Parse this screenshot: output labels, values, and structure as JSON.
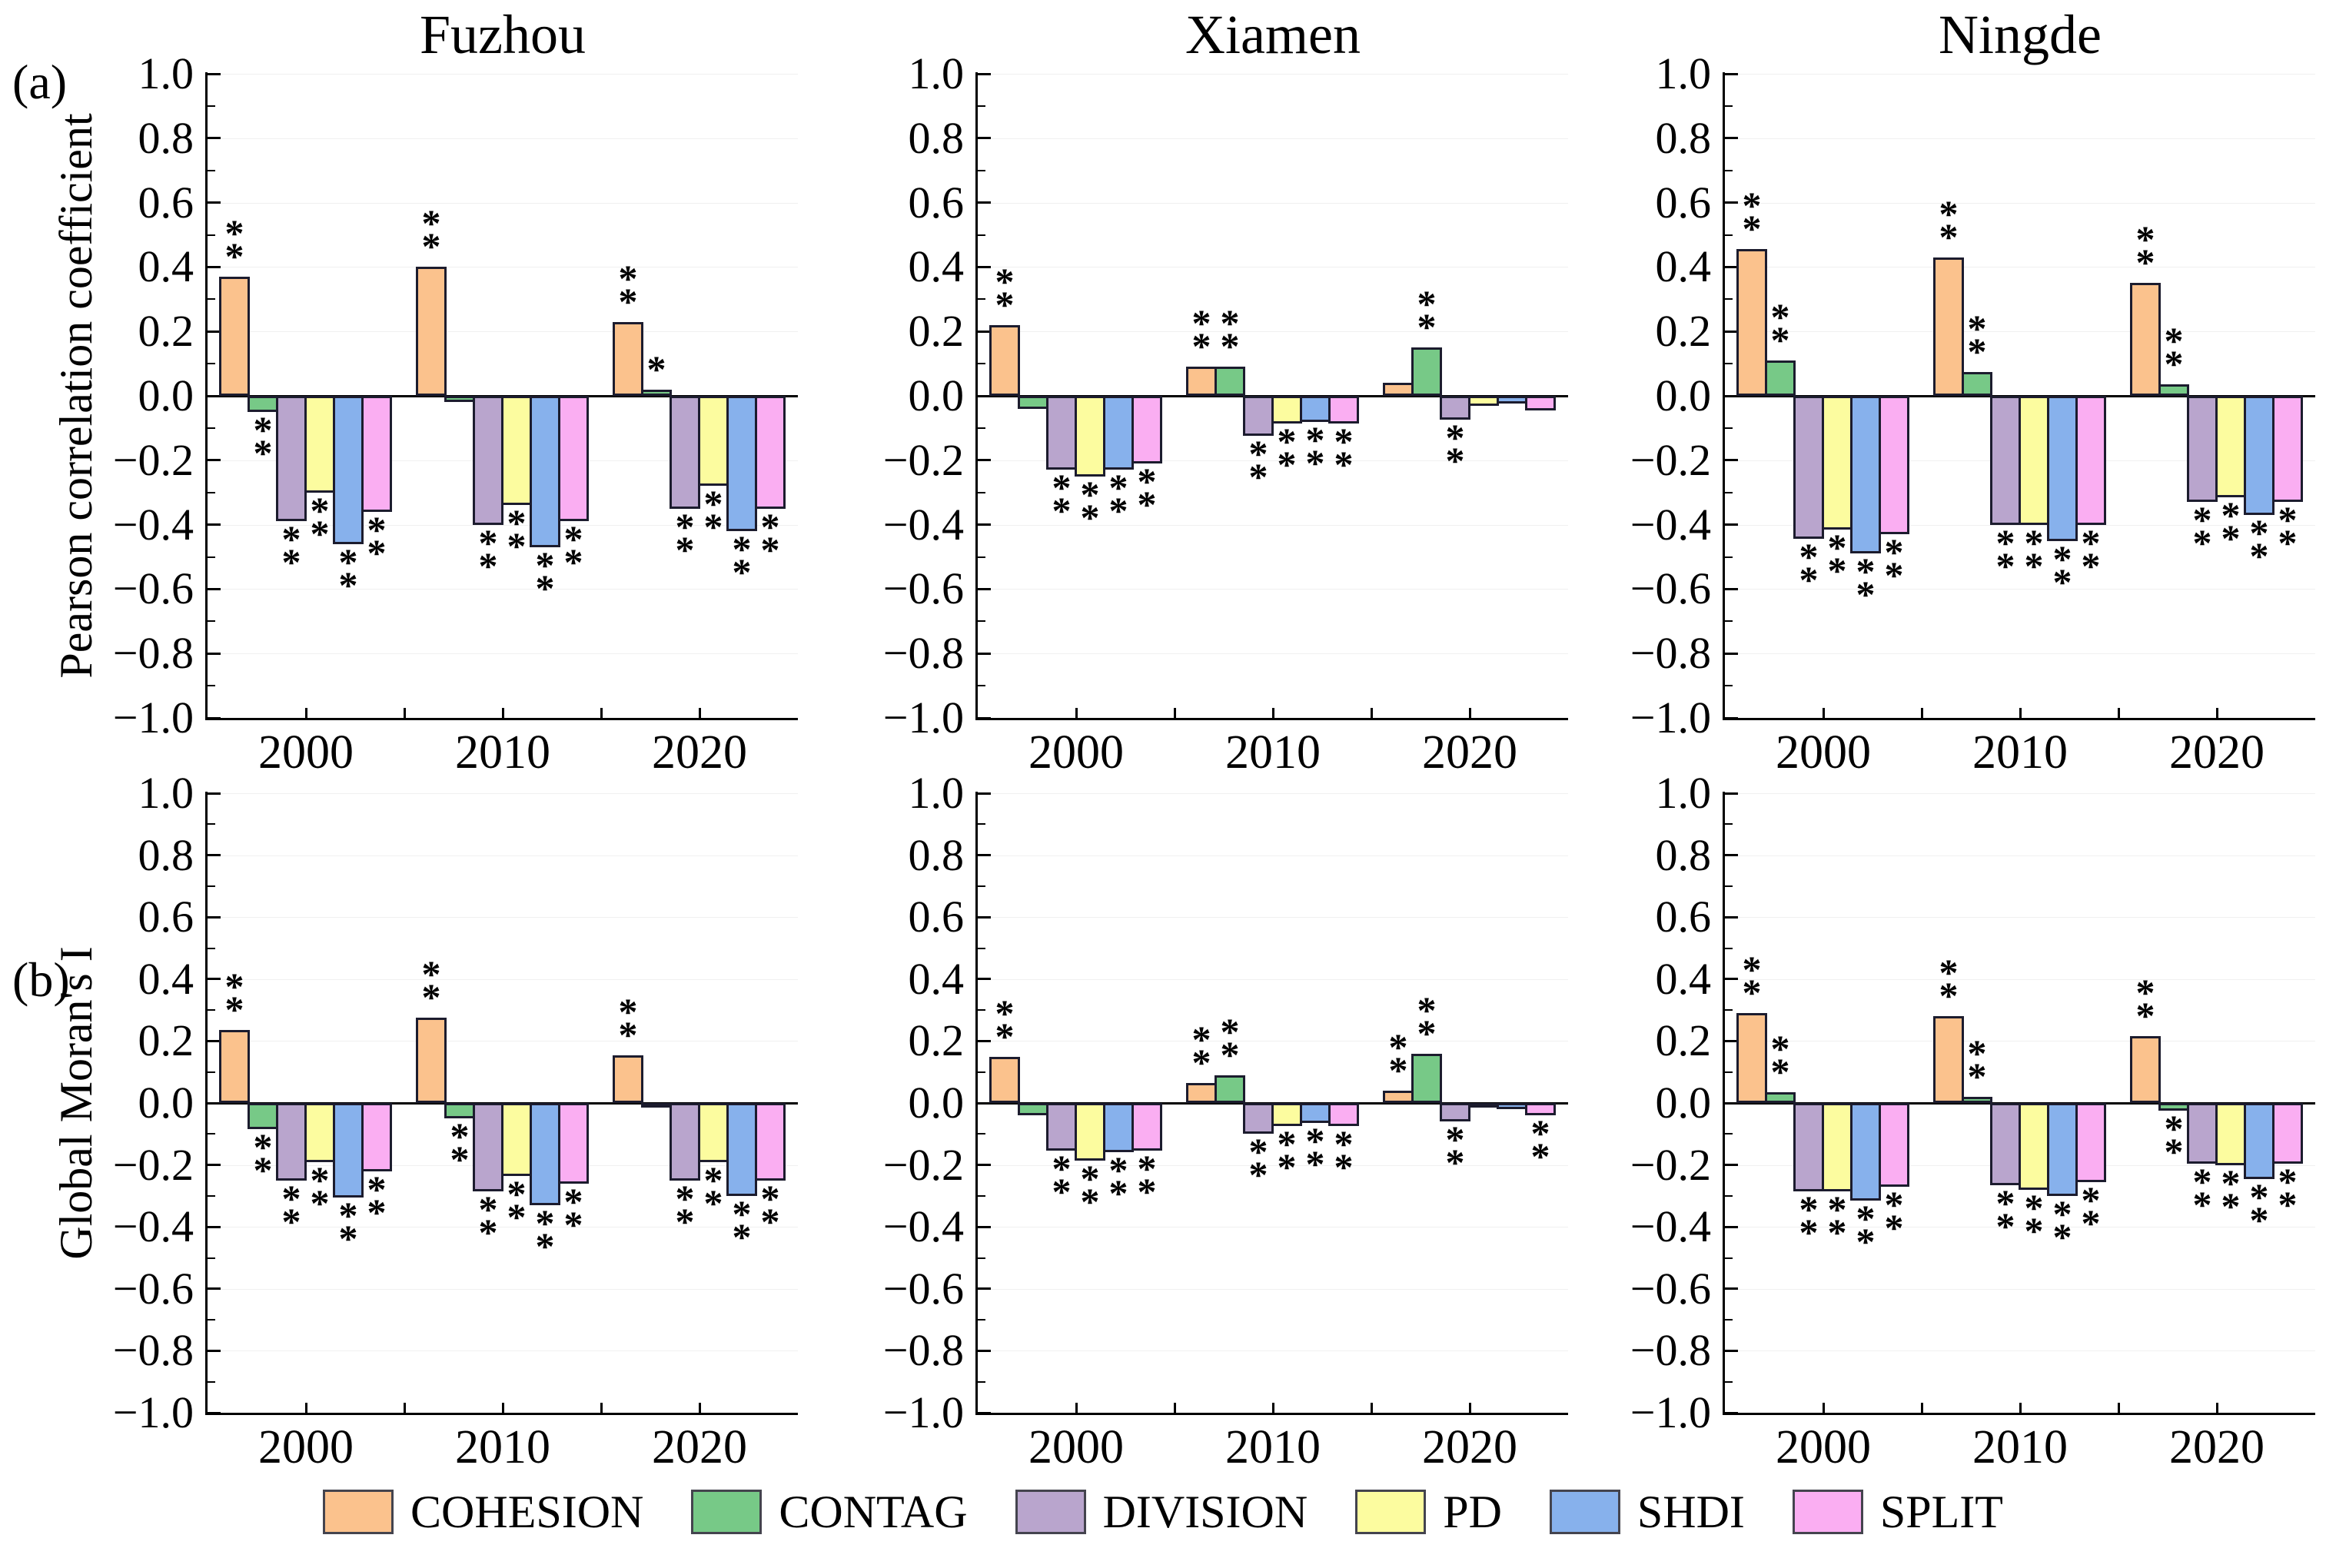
{
  "figure_labels": {
    "a": "(a)",
    "b": "(b)"
  },
  "header": {
    "cities": [
      "Fuzhou",
      "Xiamen",
      "Ningde"
    ]
  },
  "axes": {
    "y_a_title": "Pearson correlation coefficient",
    "y_b_title": "Global Moran's I",
    "ylim": [
      -1.0,
      1.0
    ],
    "major_tick_step": 0.2,
    "minor_tick_step": 0.1,
    "tick_labels": [
      "1.0",
      "0.8",
      "0.6",
      "0.4",
      "0.2",
      "0.0",
      "−0.2",
      "−0.4",
      "−0.6",
      "−0.8",
      "−1.0"
    ],
    "tick_values": [
      1.0,
      0.8,
      0.6,
      0.4,
      0.2,
      0.0,
      -0.2,
      -0.4,
      -0.6,
      -0.8,
      -1.0
    ]
  },
  "years": [
    "2000",
    "2010",
    "2020"
  ],
  "legend": [
    {
      "label": "COHESION",
      "color": "#FBC28D"
    },
    {
      "label": "CONTAG",
      "color": "#77C987"
    },
    {
      "label": "DIVISION",
      "color": "#B9A5CD"
    },
    {
      "label": "PD",
      "color": "#FCFC9F"
    },
    {
      "label": "SHDI",
      "color": "#87B1EC"
    },
    {
      "label": "SPLIT",
      "color": "#FAAEF2"
    }
  ],
  "significance_note": {
    "double": "**",
    "single": "*"
  },
  "chart_data": [
    {
      "id": "a-fuzhou",
      "type": "bar",
      "row": "a",
      "col": 0,
      "title": "Fuzhou",
      "ylabel": "Pearson correlation coefficient",
      "ylim": [
        -1.0,
        1.0
      ],
      "categories": [
        "2000",
        "2010",
        "2020"
      ],
      "series": [
        {
          "name": "COHESION",
          "values": [
            0.37,
            0.4,
            0.23
          ],
          "sig": [
            "**",
            "**",
            "**"
          ]
        },
        {
          "name": "CONTAG",
          "values": [
            -0.05,
            -0.02,
            0.02
          ],
          "sig": [
            "**",
            "",
            "*"
          ]
        },
        {
          "name": "DIVISION",
          "values": [
            -0.39,
            -0.4,
            -0.35
          ],
          "sig": [
            "**",
            "**",
            "**"
          ]
        },
        {
          "name": "PD",
          "values": [
            -0.3,
            -0.34,
            -0.28
          ],
          "sig": [
            "**",
            "**",
            "**"
          ]
        },
        {
          "name": "SHDI",
          "values": [
            -0.46,
            -0.47,
            -0.42
          ],
          "sig": [
            "**",
            "**",
            "**"
          ]
        },
        {
          "name": "SPLIT",
          "values": [
            -0.36,
            -0.39,
            -0.35
          ],
          "sig": [
            "**",
            "**",
            "**"
          ]
        }
      ]
    },
    {
      "id": "a-xiamen",
      "type": "bar",
      "row": "a",
      "col": 1,
      "title": "Xiamen",
      "ylabel": "Pearson correlation coefficient",
      "ylim": [
        -1.0,
        1.0
      ],
      "categories": [
        "2000",
        "2010",
        "2020"
      ],
      "series": [
        {
          "name": "COHESION",
          "values": [
            0.22,
            0.09,
            0.04
          ],
          "sig": [
            "**",
            "**",
            ""
          ]
        },
        {
          "name": "CONTAG",
          "values": [
            -0.04,
            0.09,
            0.15
          ],
          "sig": [
            "",
            "**",
            "**"
          ]
        },
        {
          "name": "DIVISION",
          "values": [
            -0.23,
            -0.125,
            -0.075
          ],
          "sig": [
            "**",
            "**",
            "**"
          ]
        },
        {
          "name": "PD",
          "values": [
            -0.25,
            -0.085,
            -0.03
          ],
          "sig": [
            "**",
            "**",
            ""
          ]
        },
        {
          "name": "SHDI",
          "values": [
            -0.23,
            -0.08,
            -0.025
          ],
          "sig": [
            "**",
            "**",
            ""
          ]
        },
        {
          "name": "SPLIT",
          "values": [
            -0.21,
            -0.085,
            -0.045
          ],
          "sig": [
            "**",
            "**",
            ""
          ]
        }
      ]
    },
    {
      "id": "a-ningde",
      "type": "bar",
      "row": "a",
      "col": 2,
      "title": "Ningde",
      "ylabel": "Pearson correlation coefficient",
      "ylim": [
        -1.0,
        1.0
      ],
      "categories": [
        "2000",
        "2010",
        "2020"
      ],
      "series": [
        {
          "name": "COHESION",
          "values": [
            0.455,
            0.43,
            0.35
          ],
          "sig": [
            "**",
            "**",
            "**"
          ]
        },
        {
          "name": "CONTAG",
          "values": [
            0.11,
            0.075,
            0.035
          ],
          "sig": [
            "**",
            "**",
            "**"
          ]
        },
        {
          "name": "DIVISION",
          "values": [
            -0.445,
            -0.4,
            -0.33
          ],
          "sig": [
            "**",
            "**",
            "**"
          ]
        },
        {
          "name": "PD",
          "values": [
            -0.415,
            -0.4,
            -0.315
          ],
          "sig": [
            "**",
            "**",
            "**"
          ]
        },
        {
          "name": "SHDI",
          "values": [
            -0.49,
            -0.45,
            -0.37
          ],
          "sig": [
            "**",
            "**",
            "**"
          ]
        },
        {
          "name": "SPLIT",
          "values": [
            -0.43,
            -0.4,
            -0.33
          ],
          "sig": [
            "**",
            "**",
            "**"
          ]
        }
      ]
    },
    {
      "id": "b-fuzhou",
      "type": "bar",
      "row": "b",
      "col": 0,
      "title": "Fuzhou",
      "ylabel": "Global Moran's I",
      "ylim": [
        -1.0,
        1.0
      ],
      "categories": [
        "2000",
        "2010",
        "2020"
      ],
      "series": [
        {
          "name": "COHESION",
          "values": [
            0.235,
            0.275,
            0.155
          ],
          "sig": [
            "**",
            "**",
            "**"
          ]
        },
        {
          "name": "CONTAG",
          "values": [
            -0.085,
            -0.05,
            -0.01
          ],
          "sig": [
            "**",
            "**",
            ""
          ]
        },
        {
          "name": "DIVISION",
          "values": [
            -0.25,
            -0.285,
            -0.25
          ],
          "sig": [
            "**",
            "**",
            "**"
          ]
        },
        {
          "name": "PD",
          "values": [
            -0.19,
            -0.235,
            -0.19
          ],
          "sig": [
            "**",
            "**",
            "**"
          ]
        },
        {
          "name": "SHDI",
          "values": [
            -0.305,
            -0.33,
            -0.3
          ],
          "sig": [
            "**",
            "**",
            "**"
          ]
        },
        {
          "name": "SPLIT",
          "values": [
            -0.22,
            -0.26,
            -0.25
          ],
          "sig": [
            "**",
            "**",
            "**"
          ]
        }
      ]
    },
    {
      "id": "b-xiamen",
      "type": "bar",
      "row": "b",
      "col": 1,
      "title": "Xiamen",
      "ylabel": "Global Moran's I",
      "ylim": [
        -1.0,
        1.0
      ],
      "categories": [
        "2000",
        "2010",
        "2020"
      ],
      "series": [
        {
          "name": "COHESION",
          "values": [
            0.15,
            0.065,
            0.04
          ],
          "sig": [
            "**",
            "**",
            "**"
          ]
        },
        {
          "name": "CONTAG",
          "values": [
            -0.04,
            0.09,
            0.16
          ],
          "sig": [
            "",
            "**",
            "**"
          ]
        },
        {
          "name": "DIVISION",
          "values": [
            -0.155,
            -0.1,
            -0.06
          ],
          "sig": [
            "**",
            "**",
            "**"
          ]
        },
        {
          "name": "PD",
          "values": [
            -0.185,
            -0.075,
            -0.015
          ],
          "sig": [
            "**",
            "**",
            ""
          ]
        },
        {
          "name": "SHDI",
          "values": [
            -0.16,
            -0.065,
            -0.02
          ],
          "sig": [
            "**",
            "**",
            ""
          ]
        },
        {
          "name": "SPLIT",
          "values": [
            -0.155,
            -0.075,
            -0.04
          ],
          "sig": [
            "**",
            "**",
            "**"
          ]
        }
      ]
    },
    {
      "id": "b-ningde",
      "type": "bar",
      "row": "b",
      "col": 2,
      "title": "Ningde",
      "ylabel": "Global Moran's I",
      "ylim": [
        -1.0,
        1.0
      ],
      "categories": [
        "2000",
        "2010",
        "2020"
      ],
      "series": [
        {
          "name": "COHESION",
          "values": [
            0.29,
            0.28,
            0.215
          ],
          "sig": [
            "**",
            "**",
            "**"
          ]
        },
        {
          "name": "CONTAG",
          "values": [
            0.035,
            0.02,
            -0.025
          ],
          "sig": [
            "**",
            "**",
            "**"
          ]
        },
        {
          "name": "DIVISION",
          "values": [
            -0.285,
            -0.265,
            -0.195
          ],
          "sig": [
            "**",
            "**",
            "**"
          ]
        },
        {
          "name": "PD",
          "values": [
            -0.285,
            -0.28,
            -0.2
          ],
          "sig": [
            "**",
            "**",
            "**"
          ]
        },
        {
          "name": "SHDI",
          "values": [
            -0.315,
            -0.3,
            -0.245
          ],
          "sig": [
            "**",
            "**",
            "**"
          ]
        },
        {
          "name": "SPLIT",
          "values": [
            -0.27,
            -0.255,
            -0.195
          ],
          "sig": [
            "**",
            "**",
            "**"
          ]
        }
      ]
    }
  ]
}
